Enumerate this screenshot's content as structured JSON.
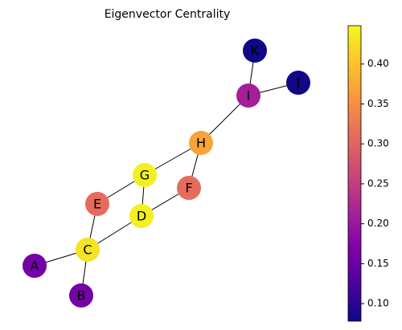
{
  "chart_data": {
    "type": "network",
    "title": "Eigenvector Centrality",
    "nodes": [
      "A",
      "B",
      "C",
      "D",
      "E",
      "F",
      "G",
      "H",
      "I",
      "J",
      "K"
    ],
    "values": [
      0.16,
      0.16,
      0.43,
      0.44,
      0.31,
      0.31,
      0.44,
      0.37,
      0.21,
      0.08,
      0.08
    ],
    "edges": [
      [
        "A",
        "C"
      ],
      [
        "B",
        "C"
      ],
      [
        "C",
        "E"
      ],
      [
        "C",
        "D"
      ],
      [
        "E",
        "G"
      ],
      [
        "G",
        "D"
      ],
      [
        "D",
        "F"
      ],
      [
        "G",
        "H"
      ],
      [
        "F",
        "H"
      ],
      [
        "H",
        "I"
      ],
      [
        "I",
        "K"
      ],
      [
        "I",
        "J"
      ]
    ],
    "colormap": "plasma",
    "ylim": [
      0.078,
      0.448
    ],
    "yticks": [
      {
        "value": 0.1,
        "label": "0.10"
      },
      0.15,
      {
        "value": 0.2,
        "label": "0.20"
      },
      0.25,
      {
        "value": 0.3,
        "label": "0.30"
      },
      0.35,
      {
        "value": 0.4,
        "label": "0.40"
      }
    ]
  }
}
